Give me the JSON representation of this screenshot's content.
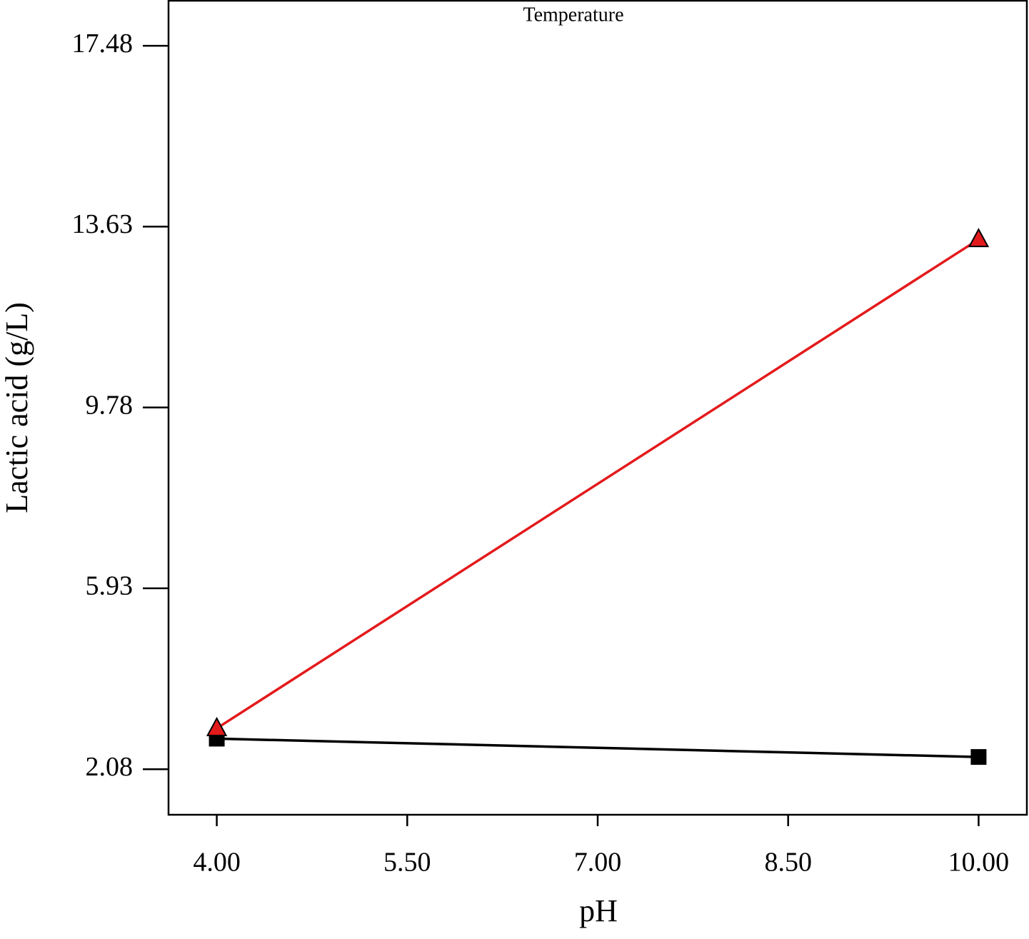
{
  "chart_data": {
    "type": "line",
    "subtitle": "Temperature",
    "x_label": "pH",
    "y_label": "Lactic acid (g/L)",
    "x": [
      4,
      10
    ],
    "series": [
      {
        "color": "#000000",
        "marker": "square",
        "values": [
          2.73,
          2.34
        ]
      },
      {
        "color": "#e31a1c",
        "marker": "triangle",
        "values": [
          2.95,
          13.36
        ]
      }
    ],
    "xlim": [
      3.62,
      10.38
    ],
    "ylim": [
      1.11,
      18.44
    ],
    "xticks": [
      {
        "value": 4,
        "label": "4.00"
      },
      {
        "value": 5.5,
        "label": "5.50"
      },
      {
        "value": 7,
        "label": "7.00"
      },
      {
        "value": 8.5,
        "label": "8.50"
      },
      {
        "value": 10,
        "label": "10.00"
      }
    ],
    "yticks": [
      {
        "value": 2.08,
        "label": "2.08"
      },
      {
        "value": 5.93,
        "label": "5.93"
      },
      {
        "value": 9.78,
        "label": "9.78"
      },
      {
        "value": 13.63,
        "label": "13.63"
      },
      {
        "value": 17.48,
        "label": "17.48"
      }
    ],
    "grid": false
  }
}
